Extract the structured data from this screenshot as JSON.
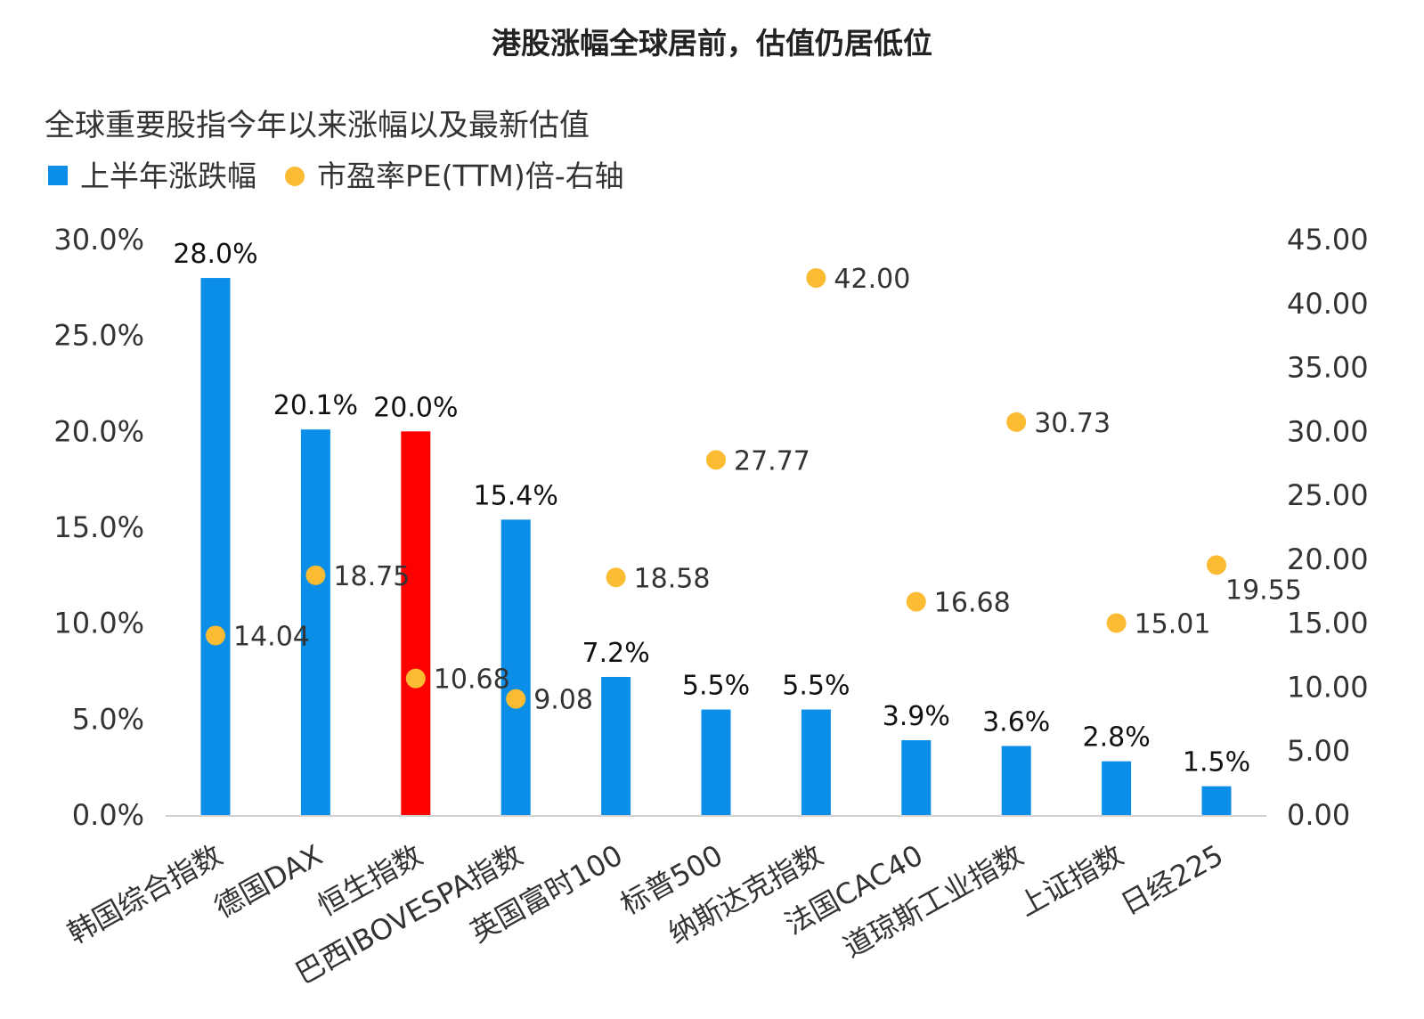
{
  "page": {
    "title": "港股涨幅全球居前，估值仍居低位"
  },
  "colors": {
    "bar": "#0b8ee8",
    "bar_highlight": "#ff0000",
    "highlight_text": "#e8101a",
    "dot": "#fbbb33",
    "axis": "#d0d0d0",
    "text": "#333333"
  },
  "chart_data": {
    "type": "bar",
    "title": "全球重要股指今年以来涨幅以及最新估值",
    "categories": [
      "韩国综合指数",
      "德国DAX",
      "恒生指数",
      "巴西IBOVESPA指数",
      "英国富时100",
      "标普500",
      "纳斯达克指数",
      "法国CAC40",
      "道琼斯工业指数",
      "上证指数",
      "日经225"
    ],
    "highlight_index": 2,
    "series": [
      {
        "name": "上半年涨跌幅",
        "type": "bar",
        "axis": "left",
        "values": [
          28.0,
          20.1,
          20.0,
          15.4,
          7.2,
          5.5,
          5.5,
          3.9,
          3.6,
          2.8,
          1.5
        ],
        "labels": [
          "28.0%",
          "20.1%",
          "20.0%",
          "15.4%",
          "7.2%",
          "5.5%",
          "5.5%",
          "3.9%",
          "3.6%",
          "2.8%",
          "1.5%"
        ]
      },
      {
        "name": "市盈率PE(TTM)倍-右轴",
        "type": "scatter",
        "axis": "right",
        "values": [
          14.04,
          18.75,
          10.68,
          9.08,
          18.58,
          27.77,
          42.0,
          16.68,
          30.73,
          15.01,
          19.55
        ],
        "labels": [
          "14.04",
          "18.75",
          "10.68",
          "9.08",
          "18.58",
          "27.77",
          "42.00",
          "16.68",
          "30.73",
          "15.01",
          "19.55"
        ]
      }
    ],
    "y_left": {
      "min": 0,
      "max": 30,
      "ticks": [
        "0.0%",
        "5.0%",
        "10.0%",
        "15.0%",
        "20.0%",
        "25.0%",
        "30.0%"
      ]
    },
    "y_right": {
      "min": 0,
      "max": 45,
      "ticks": [
        "0.00",
        "5.00",
        "10.00",
        "15.00",
        "20.00",
        "25.00",
        "30.00",
        "35.00",
        "40.00",
        "45.00"
      ]
    },
    "legend_position": "top-left",
    "grid": false
  }
}
